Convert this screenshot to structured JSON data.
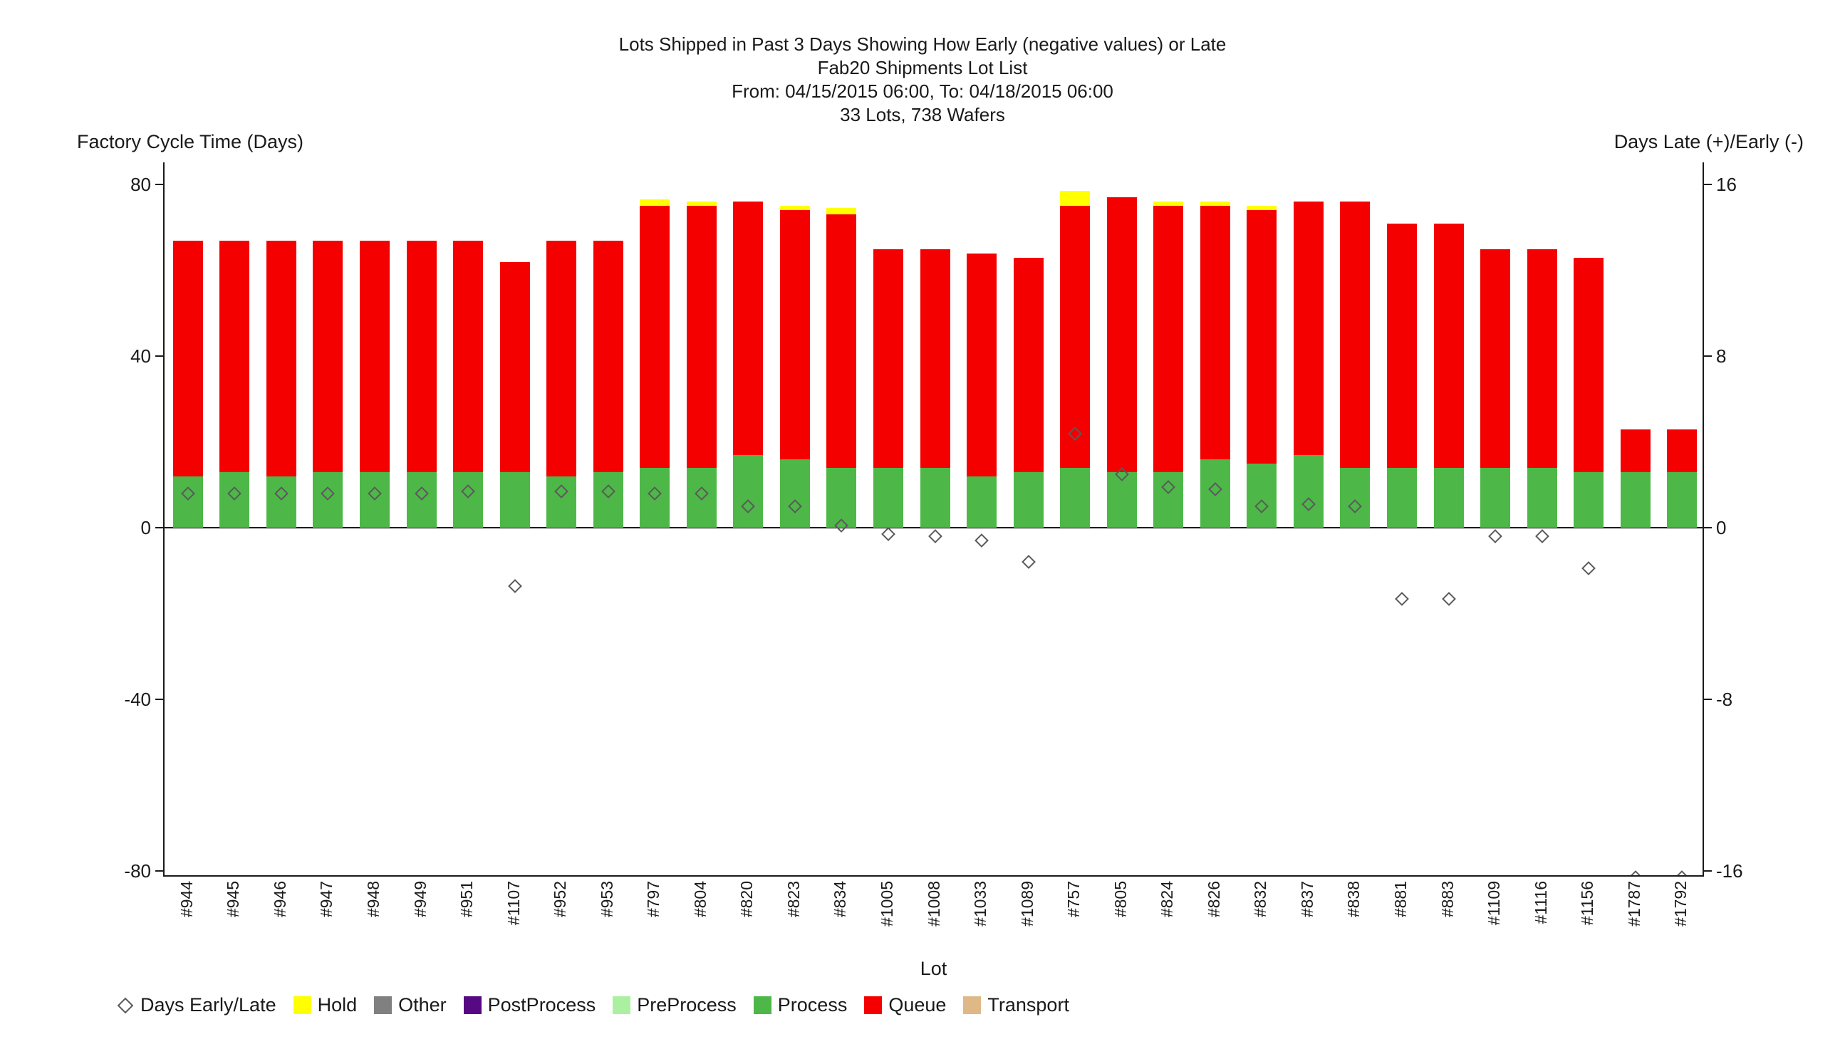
{
  "title": {
    "line1": "Lots Shipped in Past 3 Days Showing How Early (negative values) or Late",
    "line2": "Fab20 Shipments Lot List",
    "line3": "From: 04/15/2015 06:00, To: 04/18/2015 06:00",
    "line4": "33 Lots, 738 Wafers"
  },
  "axes": {
    "left_title": "Factory Cycle Time (Days)",
    "right_title": "Days Late (+)/Early (-)",
    "x_title": "Lot",
    "left_ticks": [
      80,
      40,
      0,
      -40,
      -80
    ],
    "right_ticks": [
      16,
      8,
      0,
      -8,
      -16
    ]
  },
  "legend": [
    {
      "label": "Days Early/Late",
      "type": "diamond"
    },
    {
      "label": "Hold",
      "type": "swatch",
      "color": "#ffff00"
    },
    {
      "label": "Other",
      "type": "swatch",
      "color": "#808080"
    },
    {
      "label": "PostProcess",
      "type": "swatch",
      "color": "#560982"
    },
    {
      "label": "PreProcess",
      "type": "swatch",
      "color": "#aaf0a0"
    },
    {
      "label": "Process",
      "type": "swatch",
      "color": "#4db848"
    },
    {
      "label": "Queue",
      "type": "swatch",
      "color": "#f40000"
    },
    {
      "label": "Transport",
      "type": "swatch",
      "color": "#deb887"
    }
  ],
  "chart_data": {
    "type": "bar",
    "stacked": true,
    "title": "Lots Shipped in Past 3 Days Showing How Early (negative values) or Late",
    "subtitle": "Fab20 Shipments Lot List",
    "date_range": "From: 04/15/2015 06:00, To: 04/18/2015 06:00",
    "totals": "33 Lots, 738 Wafers",
    "xlabel": "Lot",
    "ylabel_left": "Factory Cycle Time (Days)",
    "ylabel_right": "Days Late (+)/Early (-)",
    "ylim_left": [
      -81.3,
      85.2
    ],
    "ylim_right": [
      -16.26,
      17.04
    ],
    "left_ticks": [
      80,
      40,
      0,
      -40,
      -80
    ],
    "right_ticks": [
      16,
      8,
      0,
      -8,
      -16
    ],
    "grid": false,
    "legend_position": "bottom",
    "categories": [
      "#944",
      "#945",
      "#946",
      "#947",
      "#948",
      "#949",
      "#951",
      "#1107",
      "#952",
      "#953",
      "#797",
      "#804",
      "#820",
      "#823",
      "#834",
      "#1005",
      "#1008",
      "#1033",
      "#1089",
      "#757",
      "#805",
      "#824",
      "#826",
      "#832",
      "#837",
      "#838",
      "#881",
      "#883",
      "#1109",
      "#1116",
      "#1156",
      "#1787",
      "#1792"
    ],
    "series": [
      {
        "name": "Process",
        "color": "#4db848",
        "values": [
          12,
          13,
          12,
          13,
          13,
          13,
          13,
          13,
          12,
          13,
          14,
          14,
          17,
          16,
          14,
          14,
          14,
          12,
          13,
          14,
          13,
          13,
          16,
          15,
          17,
          14,
          14,
          14,
          14,
          14,
          13,
          13,
          13
        ]
      },
      {
        "name": "Queue",
        "color": "#f40000",
        "values": [
          55,
          54,
          55,
          54,
          54,
          54,
          54,
          49,
          55,
          54,
          61,
          61,
          59,
          58,
          59,
          51,
          51,
          52,
          50,
          61,
          64,
          62,
          59,
          59,
          59,
          62,
          57,
          57,
          51,
          51,
          50,
          10,
          10
        ]
      },
      {
        "name": "Hold",
        "color": "#ffff00",
        "values": [
          0,
          0,
          0,
          0,
          0,
          0,
          0,
          0,
          0,
          0,
          1.5,
          1,
          0,
          1,
          1.5,
          0,
          0,
          0,
          0,
          3.5,
          0,
          1,
          1,
          1,
          0,
          0,
          0,
          0,
          0,
          0,
          0,
          0,
          0
        ]
      }
    ],
    "markers": {
      "name": "Days Early/Late",
      "axis": "right",
      "shape": "diamond",
      "values": [
        1.6,
        1.6,
        1.6,
        1.6,
        1.6,
        1.6,
        1.7,
        -2.7,
        1.7,
        1.7,
        1.6,
        1.6,
        1.0,
        1.0,
        0.1,
        -0.3,
        -0.4,
        -0.6,
        -1.6,
        4.4,
        2.5,
        1.9,
        1.8,
        1.0,
        1.1,
        1.0,
        -3.3,
        -3.3,
        -0.4,
        -0.4,
        -1.9,
        -16.3,
        -16.3
      ]
    }
  }
}
